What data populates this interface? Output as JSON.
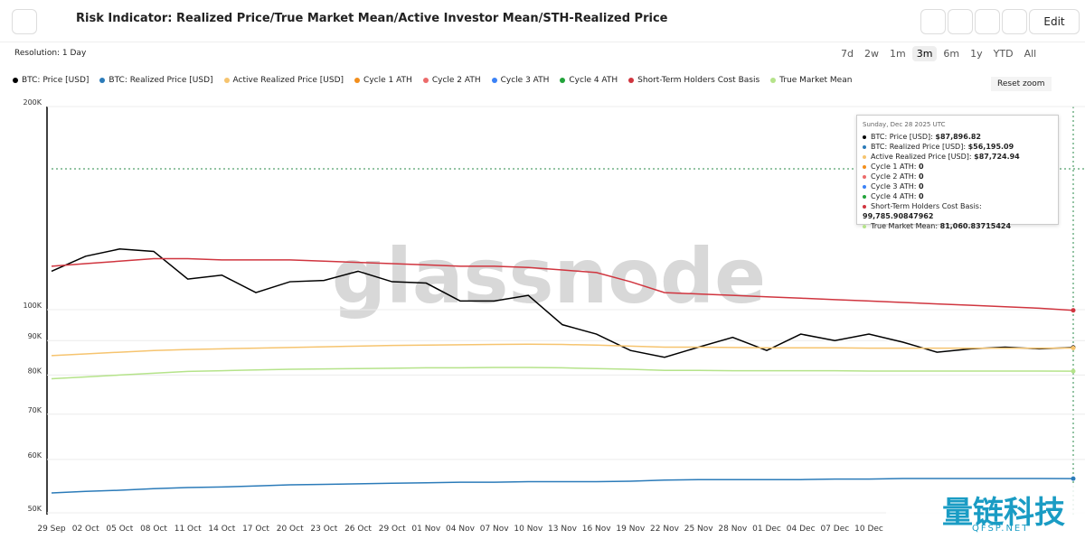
{
  "header": {
    "title": "Risk Indicator: Realized Price/True Market Mean/Active Investor Mean/STH-Realized Price",
    "edit": "Edit"
  },
  "toolbar": {
    "resolution": "Resolution: 1 Day",
    "ranges": [
      "7d",
      "2w",
      "1m",
      "3m",
      "6m",
      "1y",
      "YTD",
      "All"
    ],
    "reset_zoom": "Reset zoom"
  },
  "watermark": "glassnode",
  "corner_logo": {
    "name": "量链科技",
    "site": "QFSP.NET"
  },
  "tooltip": {
    "date": "Sunday, Dec 28 2025 UTC",
    "rows": [
      {
        "label": "BTC: Price [USD]:",
        "value": "$87,896.82"
      },
      {
        "label": "BTC: Realized Price [USD]:",
        "value": "$56,195.09"
      },
      {
        "label": "Active Realized Price [USD]:",
        "value": "$87,724.94"
      },
      {
        "label": "Cycle 1 ATH:",
        "value": "0"
      },
      {
        "label": "Cycle 2 ATH:",
        "value": "0"
      },
      {
        "label": "Cycle 3 ATH:",
        "value": "0"
      },
      {
        "label": "Cycle 4 ATH:",
        "value": "0"
      },
      {
        "label": "Short-Term Holders Cost Basis:",
        "value": "99,785.90847962"
      },
      {
        "label": "True Market Mean:",
        "value": "81,060.83715424"
      }
    ]
  },
  "chart_data": {
    "type": "line",
    "log_scale": true,
    "grid": true,
    "categories": [
      "29 Sep",
      "02 Oct",
      "05 Oct",
      "08 Oct",
      "11 Oct",
      "14 Oct",
      "17 Oct",
      "20 Oct",
      "23 Oct",
      "26 Oct",
      "29 Oct",
      "01 Nov",
      "04 Nov",
      "07 Nov",
      "10 Nov",
      "13 Nov",
      "16 Nov",
      "19 Nov",
      "22 Nov",
      "25 Nov",
      "28 Nov",
      "01 Dec",
      "04 Dec",
      "07 Dec",
      "10 Dec",
      null,
      null,
      null,
      null,
      null,
      null
    ],
    "ylim": [
      50000,
      200000
    ],
    "yticks": [
      {
        "value": 50000,
        "label": "50K"
      },
      {
        "value": 60000,
        "label": "60K"
      },
      {
        "value": 70000,
        "label": "70K"
      },
      {
        "value": 80000,
        "label": "80K"
      },
      {
        "value": 90000,
        "label": "90K"
      },
      {
        "value": 100000,
        "label": "100K"
      },
      {
        "value": 200000,
        "label": "200K"
      }
    ],
    "series": [
      {
        "name": "BTC: Price [USD]",
        "color": "#000000",
        "values": [
          114000,
          120000,
          123000,
          122000,
          111000,
          112500,
          106000,
          110000,
          110500,
          114000,
          110000,
          109500,
          103000,
          103000,
          105000,
          95000,
          92000,
          87000,
          85000,
          88000,
          91000,
          87000,
          92000,
          90000,
          92000,
          89500,
          86500,
          87500,
          88000,
          87500,
          87896.82
        ]
      },
      {
        "name": "BTC: Realized Price [USD]",
        "color": "#2b7bb9",
        "values": [
          53500,
          53800,
          54000,
          54300,
          54500,
          54600,
          54800,
          55000,
          55100,
          55200,
          55300,
          55400,
          55500,
          55500,
          55600,
          55600,
          55600,
          55700,
          55900,
          56000,
          56000,
          56000,
          56000,
          56100,
          56100,
          56200,
          56200,
          56200,
          56200,
          56200,
          56195.09
        ]
      },
      {
        "name": "Active Realized Price [USD]",
        "color": "#f6c46f",
        "values": [
          85500,
          86000,
          86500,
          87000,
          87300,
          87500,
          87700,
          87900,
          88100,
          88300,
          88500,
          88600,
          88700,
          88800,
          88900,
          88800,
          88600,
          88300,
          88000,
          88000,
          87900,
          87800,
          87800,
          87800,
          87700,
          87700,
          87700,
          87700,
          87700,
          87700,
          87724.94
        ]
      },
      {
        "name": "Cycle 1 ATH",
        "color": "#f28e1c"
      },
      {
        "name": "Cycle 2 ATH",
        "color": "#ec6b6b"
      },
      {
        "name": "Cycle 3 ATH",
        "color": "#3b82f6"
      },
      {
        "name": "Cycle 4 ATH",
        "color": "#22a33a"
      },
      {
        "name": "Short-Term Holders Cost Basis",
        "color": "#d0353f",
        "values": [
          116000,
          117000,
          118000,
          119000,
          119000,
          118500,
          118500,
          118500,
          118000,
          117500,
          117000,
          116500,
          116000,
          116000,
          115500,
          114500,
          113500,
          110000,
          106000,
          105500,
          105000,
          104500,
          104000,
          103500,
          103000,
          102500,
          102000,
          101500,
          101000,
          100500,
          99785.90847962
        ]
      },
      {
        "name": "True Market Mean",
        "color": "#b5e38a",
        "values": [
          79000,
          79500,
          80000,
          80500,
          81000,
          81200,
          81400,
          81600,
          81700,
          81800,
          81900,
          82000,
          82000,
          82100,
          82100,
          82000,
          81800,
          81600,
          81300,
          81300,
          81200,
          81200,
          81200,
          81200,
          81100,
          81100,
          81100,
          81100,
          81100,
          81100,
          81060.83715424
        ]
      }
    ]
  }
}
